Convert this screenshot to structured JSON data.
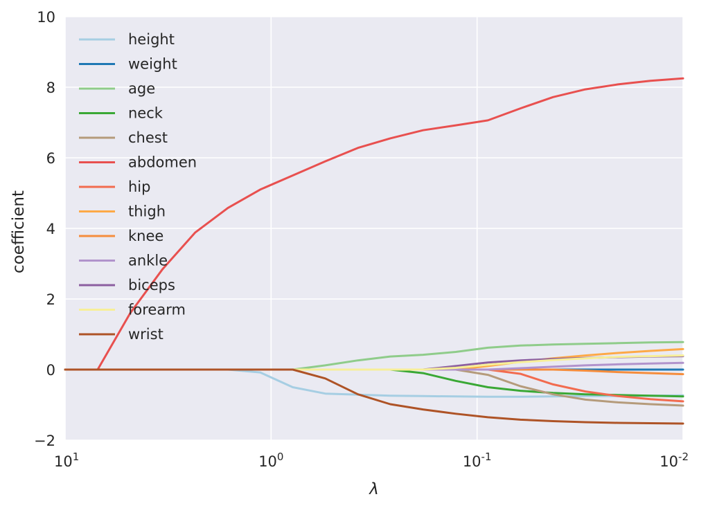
{
  "chart_data": {
    "type": "line",
    "title": "",
    "xlabel": "λ",
    "ylabel": "coefficient",
    "x_scale": "log",
    "x_reversed": true,
    "xlim": [
      10,
      0.01
    ],
    "ylim": [
      -2,
      10
    ],
    "grid": true,
    "legend_position": "top-left",
    "x_ticks": [
      {
        "value": 10,
        "base": "10",
        "exp": "1"
      },
      {
        "value": 1,
        "base": "10",
        "exp": "0"
      },
      {
        "value": 0.1,
        "base": "10",
        "exp": "-1"
      },
      {
        "value": 0.01,
        "base": "10",
        "exp": "-2"
      }
    ],
    "y_ticks": [
      {
        "value": -2,
        "label": "−2"
      },
      {
        "value": 0,
        "label": "0"
      },
      {
        "value": 2,
        "label": "2"
      },
      {
        "value": 4,
        "label": "4"
      },
      {
        "value": 6,
        "label": "6"
      },
      {
        "value": 8,
        "label": "8"
      },
      {
        "value": 10,
        "label": "10"
      }
    ],
    "x": [
      10,
      6.95,
      4.83,
      3.36,
      2.34,
      1.62,
      1.13,
      0.785,
      0.546,
      0.379,
      0.264,
      0.183,
      0.127,
      0.0886,
      0.0616,
      0.0428,
      0.0298,
      0.0207,
      0.0144,
      0.01
    ],
    "series": [
      {
        "name": "height",
        "color": "#a6cee3",
        "values": [
          0,
          0,
          0,
          0,
          0,
          0,
          -0.08,
          -0.5,
          -0.68,
          -0.71,
          -0.74,
          -0.75,
          -0.76,
          -0.77,
          -0.77,
          -0.76,
          -0.75,
          -0.75,
          -0.74,
          -0.73
        ]
      },
      {
        "name": "weight",
        "color": "#1f78b4",
        "values": [
          0,
          0,
          0,
          0,
          0,
          0,
          0,
          0,
          0,
          0,
          0,
          0,
          0,
          0,
          0,
          0,
          0,
          0,
          0,
          0
        ]
      },
      {
        "name": "age",
        "color": "#8fcc8a",
        "values": [
          0,
          0,
          0,
          0,
          0,
          0,
          0,
          0,
          0.12,
          0.26,
          0.37,
          0.42,
          0.5,
          0.62,
          0.68,
          0.71,
          0.73,
          0.75,
          0.77,
          0.78
        ]
      },
      {
        "name": "neck",
        "color": "#3aa835",
        "values": [
          0,
          0,
          0,
          0,
          0,
          0,
          0,
          0,
          0,
          0,
          0,
          -0.1,
          -0.32,
          -0.5,
          -0.6,
          -0.66,
          -0.7,
          -0.72,
          -0.74,
          -0.76
        ]
      },
      {
        "name": "chest",
        "color": "#b59b7b",
        "values": [
          0,
          0,
          0,
          0,
          0,
          0,
          0,
          0,
          0,
          0,
          0,
          0,
          0,
          -0.15,
          -0.47,
          -0.7,
          -0.85,
          -0.93,
          -0.98,
          -1.02
        ]
      },
      {
        "name": "abdomen",
        "color": "#e8504f",
        "values": [
          0,
          0,
          1.6,
          2.85,
          3.88,
          4.58,
          5.1,
          5.5,
          5.9,
          6.28,
          6.55,
          6.78,
          6.92,
          7.06,
          7.4,
          7.72,
          7.94,
          8.08,
          8.18,
          8.25
        ]
      },
      {
        "name": "hip",
        "color": "#f26b4f",
        "values": [
          0,
          0,
          0,
          0,
          0,
          0,
          0,
          0,
          0,
          0,
          0,
          0,
          0,
          0,
          -0.12,
          -0.42,
          -0.62,
          -0.75,
          -0.84,
          -0.9
        ]
      },
      {
        "name": "thigh",
        "color": "#fda947",
        "values": [
          0,
          0,
          0,
          0,
          0,
          0,
          0,
          0,
          0,
          0,
          0,
          0,
          0,
          0.1,
          0.22,
          0.32,
          0.4,
          0.47,
          0.53,
          0.58
        ]
      },
      {
        "name": "knee",
        "color": "#f58d3d",
        "values": [
          0,
          0,
          0,
          0,
          0,
          0,
          0,
          0,
          0,
          0,
          0,
          0,
          0,
          0,
          0,
          0,
          -0.03,
          -0.07,
          -0.1,
          -0.13
        ]
      },
      {
        "name": "ankle",
        "color": "#b193cc",
        "values": [
          0,
          0,
          0,
          0,
          0,
          0,
          0,
          0,
          0,
          0,
          0,
          0,
          0,
          0,
          0.04,
          0.08,
          0.12,
          0.15,
          0.17,
          0.19
        ]
      },
      {
        "name": "biceps",
        "color": "#8c5fa0",
        "values": [
          0,
          0,
          0,
          0,
          0,
          0,
          0,
          0,
          0,
          0,
          0,
          0,
          0.1,
          0.2,
          0.26,
          0.3,
          0.33,
          0.35,
          0.37,
          0.38
        ]
      },
      {
        "name": "forearm",
        "color": "#f7ef98",
        "values": [
          0,
          0,
          0,
          0,
          0,
          0,
          0,
          0,
          0,
          0,
          0,
          0,
          0.05,
          0.14,
          0.21,
          0.27,
          0.32,
          0.36,
          0.38,
          0.4
        ]
      },
      {
        "name": "wrist",
        "color": "#ae5326",
        "values": [
          0,
          0,
          0,
          0,
          0,
          0,
          0,
          0,
          -0.25,
          -0.7,
          -0.98,
          -1.13,
          -1.25,
          -1.35,
          -1.42,
          -1.46,
          -1.49,
          -1.51,
          -1.52,
          -1.53
        ]
      }
    ]
  }
}
